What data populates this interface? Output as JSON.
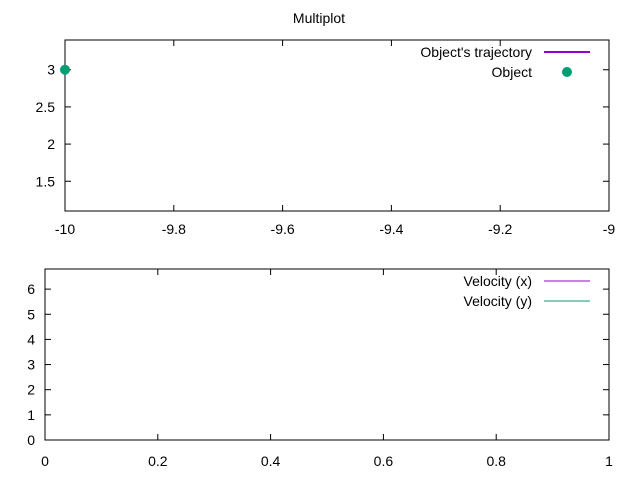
{
  "title": "Multiplot",
  "chart_data": [
    {
      "type": "scatter",
      "xlim": [
        -10,
        -9
      ],
      "ylim": [
        1.1,
        3.4
      ],
      "x_ticks": [
        -10,
        -9.8,
        -9.6,
        -9.4,
        -9.2,
        -9
      ],
      "x_tick_labels": [
        "-10",
        "-9.8",
        "-9.6",
        "-9.4",
        "-9.2",
        "-9"
      ],
      "y_ticks": [
        1.5,
        2,
        2.5,
        3
      ],
      "y_tick_labels": [
        "1.5",
        "2",
        "2.5",
        "3"
      ],
      "grid": false,
      "legend_position": "top-right",
      "series": [
        {
          "name": "Object's trajectory",
          "style": "line",
          "color": "#9400d3",
          "x": [],
          "y": []
        },
        {
          "name": "Object",
          "style": "points",
          "color": "#009e73",
          "x": [
            -10
          ],
          "y": [
            3
          ]
        }
      ]
    },
    {
      "type": "line",
      "xlim": [
        0,
        1
      ],
      "ylim": [
        0,
        6.8
      ],
      "x_ticks": [
        0,
        0.2,
        0.4,
        0.6,
        0.8,
        1
      ],
      "x_tick_labels": [
        "0",
        "0.2",
        "0.4",
        "0.6",
        "0.8",
        "1"
      ],
      "y_ticks": [
        0,
        1,
        2,
        3,
        4,
        5,
        6
      ],
      "y_tick_labels": [
        "0",
        "1",
        "2",
        "3",
        "4",
        "5",
        "6"
      ],
      "grid": false,
      "legend_position": "top-right",
      "series": [
        {
          "name": "Velocity (x)",
          "style": "line",
          "color": "#9400d3",
          "x": [],
          "y": []
        },
        {
          "name": "Velocity (y)",
          "style": "line",
          "color": "#009e73",
          "x": [],
          "y": []
        }
      ]
    }
  ]
}
